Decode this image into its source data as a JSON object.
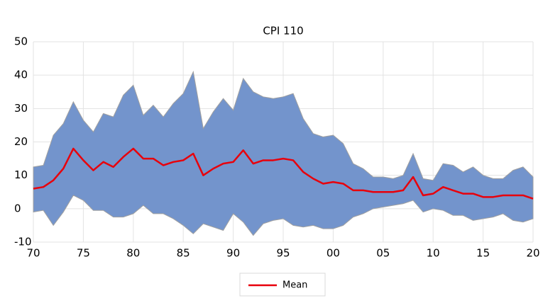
{
  "chart_data": {
    "type": "line",
    "title": "CPI 110",
    "x": [
      1970,
      1971,
      1972,
      1973,
      1974,
      1975,
      1976,
      1977,
      1978,
      1979,
      1980,
      1981,
      1982,
      1983,
      1984,
      1985,
      1986,
      1987,
      1988,
      1989,
      1990,
      1991,
      1992,
      1993,
      1994,
      1995,
      1996,
      1997,
      1998,
      1999,
      2000,
      2001,
      2002,
      2003,
      2004,
      2005,
      2006,
      2007,
      2008,
      2009,
      2010,
      2011,
      2012,
      2013,
      2014,
      2015,
      2016,
      2017,
      2018,
      2019,
      2020
    ],
    "xlim": [
      1970,
      2020
    ],
    "xticks": [
      {
        "value": 1970,
        "label": "70"
      },
      {
        "value": 1975,
        "label": "75"
      },
      {
        "value": 1980,
        "label": "80"
      },
      {
        "value": 1985,
        "label": "85"
      },
      {
        "value": 1990,
        "label": "90"
      },
      {
        "value": 1995,
        "label": "95"
      },
      {
        "value": 2000,
        "label": "00"
      },
      {
        "value": 2005,
        "label": "05"
      },
      {
        "value": 2010,
        "label": "10"
      },
      {
        "value": 2015,
        "label": "15"
      },
      {
        "value": 2020,
        "label": "20"
      }
    ],
    "ylim": [
      -10,
      50
    ],
    "yticks": [
      -10,
      0,
      10,
      20,
      30,
      40,
      50
    ],
    "grid": true,
    "band": {
      "color": "#7394cc",
      "edge_color": "#a0a0a0",
      "upper": [
        12.5,
        13,
        22,
        25.5,
        32,
        26.5,
        23,
        28.5,
        27.5,
        34,
        37,
        28,
        31,
        27.5,
        31.5,
        34.5,
        41,
        24,
        29,
        33,
        29.5,
        39,
        35,
        33.5,
        33,
        33.5,
        34.5,
        27,
        22.5,
        21.5,
        22,
        19.5,
        13.5,
        12,
        9.5,
        9.5,
        9,
        10,
        16.5,
        9,
        8.5,
        13.5,
        13,
        11,
        12.5,
        10,
        9,
        9,
        11.5,
        12.5,
        9.5
      ],
      "lower": [
        -1,
        -0.5,
        -5,
        -1,
        4,
        2.5,
        -0.5,
        -0.5,
        -2.5,
        -2.5,
        -1.5,
        1,
        -1.5,
        -1.5,
        -3,
        -5,
        -7.5,
        -4.5,
        -5.5,
        -6.5,
        -1.5,
        -4,
        -8,
        -4.5,
        -3.5,
        -3,
        -5,
        -5.5,
        -5,
        -6,
        -6,
        -5,
        -2.5,
        -1.5,
        0,
        0.5,
        1,
        1.5,
        2.5,
        -1,
        0,
        -0.5,
        -2,
        -2,
        -3.5,
        -3,
        -2.5,
        -1.5,
        -3.5,
        -4,
        -3
      ]
    },
    "series": [
      {
        "name": "Mean",
        "color": "#e8000b",
        "values": [
          6,
          6.5,
          8.5,
          12,
          18,
          14.5,
          11.5,
          14,
          12.5,
          15.5,
          18,
          15,
          15,
          13,
          14,
          14.5,
          16.5,
          10,
          12,
          13.5,
          14,
          17.5,
          13.5,
          14.5,
          14.5,
          15,
          14.5,
          11,
          9,
          7.5,
          8,
          7.5,
          5.5,
          5.5,
          5,
          5,
          5,
          5.5,
          9.5,
          4,
          4.5,
          6.5,
          5.5,
          4.5,
          4.5,
          3.5,
          3.5,
          4,
          4,
          4,
          3
        ]
      }
    ],
    "legend": "bottom"
  }
}
